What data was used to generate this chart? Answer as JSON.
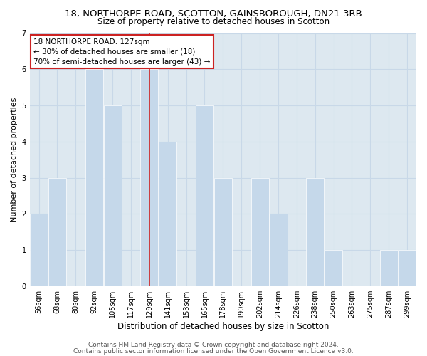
{
  "title": "18, NORTHORPE ROAD, SCOTTON, GAINSBOROUGH, DN21 3RB",
  "subtitle": "Size of property relative to detached houses in Scotton",
  "xlabel": "Distribution of detached houses by size in Scotton",
  "ylabel": "Number of detached properties",
  "bar_labels": [
    "56sqm",
    "68sqm",
    "80sqm",
    "92sqm",
    "105sqm",
    "117sqm",
    "129sqm",
    "141sqm",
    "153sqm",
    "165sqm",
    "178sqm",
    "190sqm",
    "202sqm",
    "214sqm",
    "226sqm",
    "238sqm",
    "250sqm",
    "263sqm",
    "275sqm",
    "287sqm",
    "299sqm"
  ],
  "bar_values": [
    2,
    3,
    0,
    6,
    5,
    0,
    6,
    4,
    0,
    5,
    3,
    0,
    3,
    2,
    0,
    3,
    1,
    0,
    0,
    1,
    1
  ],
  "bar_color": "#c5d8ea",
  "bar_edge_color": "#ffffff",
  "red_line_index": 6,
  "ylim": [
    0,
    7
  ],
  "yticks": [
    0,
    1,
    2,
    3,
    4,
    5,
    6,
    7
  ],
  "annotation_title": "18 NORTHORPE ROAD: 127sqm",
  "annotation_line1": "← 30% of detached houses are smaller (18)",
  "annotation_line2": "70% of semi-detached houses are larger (43) →",
  "annotation_box_facecolor": "#ffffff",
  "annotation_box_edgecolor": "#cc2222",
  "grid_color": "#c8d8e8",
  "plot_bg_color": "#dde8f0",
  "fig_bg_color": "#ffffff",
  "footer1": "Contains HM Land Registry data © Crown copyright and database right 2024.",
  "footer2": "Contains public sector information licensed under the Open Government Licence v3.0.",
  "title_fontsize": 9.5,
  "subtitle_fontsize": 8.5,
  "xlabel_fontsize": 8.5,
  "ylabel_fontsize": 8,
  "tick_fontsize": 7,
  "annotation_fontsize": 7.5,
  "footer_fontsize": 6.5
}
